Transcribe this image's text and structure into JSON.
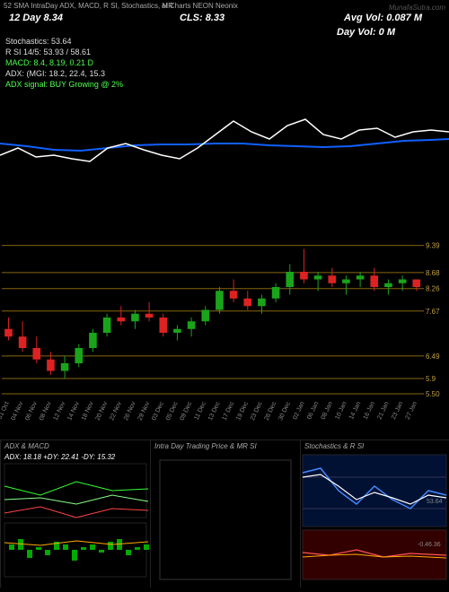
{
  "header": {
    "left": "52 SMA IntraDay ADX, MACD, R    SI, Stochastics, MR",
    "mid": "aI Charts NEON         Neonix",
    "brand": "MunafaSutra.com"
  },
  "titles": {
    "dayline": "12   Day    8.34",
    "cls": "CLS:   8.33",
    "avgvol": "Avg Vol: 0.087 M",
    "dayvol": "Day Vol: 0   M"
  },
  "indicators": {
    "lines": [
      {
        "text": "Stochastics: 53.64",
        "color": "#ddd"
      },
      {
        "text": "R    SI 14/5: 53.93 / 58.61",
        "color": "#ddd"
      },
      {
        "text": "MACD: 8.4,   8.19, 0.21 D",
        "color": "#4f4"
      },
      {
        "text": "ADX:                    (MGI: 18.2,  22.4,  15.3",
        "color": "#ddd"
      },
      {
        "text": "ADX   signal:                                 BUY Growing @ 2%",
        "color": "#4fff4f"
      }
    ]
  },
  "top_panel": {
    "line_blue": {
      "color": "#1060ff",
      "width": 2,
      "points": [
        [
          0,
          55
        ],
        [
          30,
          58
        ],
        [
          60,
          62
        ],
        [
          90,
          63
        ],
        [
          120,
          60
        ],
        [
          150,
          57
        ],
        [
          180,
          56
        ],
        [
          210,
          56
        ],
        [
          240,
          55
        ],
        [
          270,
          55
        ],
        [
          300,
          57
        ],
        [
          330,
          58
        ],
        [
          360,
          59
        ],
        [
          390,
          58
        ],
        [
          420,
          55
        ],
        [
          450,
          52
        ],
        [
          480,
          51
        ],
        [
          500,
          50
        ]
      ]
    },
    "line_white": {
      "color": "#ffffff",
      "width": 1.5,
      "points": [
        [
          0,
          68
        ],
        [
          20,
          60
        ],
        [
          40,
          70
        ],
        [
          60,
          68
        ],
        [
          80,
          72
        ],
        [
          100,
          75
        ],
        [
          120,
          60
        ],
        [
          140,
          55
        ],
        [
          160,
          62
        ],
        [
          180,
          68
        ],
        [
          200,
          72
        ],
        [
          220,
          60
        ],
        [
          240,
          45
        ],
        [
          260,
          30
        ],
        [
          280,
          42
        ],
        [
          300,
          50
        ],
        [
          320,
          35
        ],
        [
          340,
          28
        ],
        [
          360,
          45
        ],
        [
          380,
          50
        ],
        [
          400,
          40
        ],
        [
          420,
          38
        ],
        [
          440,
          48
        ],
        [
          460,
          42
        ],
        [
          480,
          40
        ],
        [
          500,
          42
        ]
      ]
    }
  },
  "candle_panel": {
    "ylim": [
      5.5,
      9.5
    ],
    "hlines": [
      9.39,
      8.68,
      8.26,
      7.67,
      6.49,
      5.9,
      5.5
    ],
    "hline_labels": [
      "9.39",
      "8.68",
      "8.26",
      "7.67",
      "6.49",
      "5.9",
      "5.50"
    ],
    "hline_min_label": "5.50",
    "green": "#1aa41a",
    "red": "#d22",
    "candles": [
      {
        "o": 7.2,
        "h": 7.5,
        "l": 6.9,
        "c": 7.0
      },
      {
        "o": 7.0,
        "h": 7.4,
        "l": 6.6,
        "c": 6.7
      },
      {
        "o": 6.7,
        "h": 7.0,
        "l": 6.3,
        "c": 6.4
      },
      {
        "o": 6.4,
        "h": 6.6,
        "l": 6.0,
        "c": 6.1
      },
      {
        "o": 6.1,
        "h": 6.5,
        "l": 5.9,
        "c": 6.3
      },
      {
        "o": 6.3,
        "h": 6.8,
        "l": 6.2,
        "c": 6.7
      },
      {
        "o": 6.7,
        "h": 7.2,
        "l": 6.6,
        "c": 7.1
      },
      {
        "o": 7.1,
        "h": 7.6,
        "l": 7.0,
        "c": 7.5
      },
      {
        "o": 7.5,
        "h": 7.8,
        "l": 7.3,
        "c": 7.4
      },
      {
        "o": 7.4,
        "h": 7.7,
        "l": 7.2,
        "c": 7.6
      },
      {
        "o": 7.6,
        "h": 7.9,
        "l": 7.4,
        "c": 7.5
      },
      {
        "o": 7.5,
        "h": 7.6,
        "l": 7.0,
        "c": 7.1
      },
      {
        "o": 7.1,
        "h": 7.3,
        "l": 6.9,
        "c": 7.2
      },
      {
        "o": 7.2,
        "h": 7.5,
        "l": 7.0,
        "c": 7.4
      },
      {
        "o": 7.4,
        "h": 7.8,
        "l": 7.3,
        "c": 7.7
      },
      {
        "o": 7.7,
        "h": 8.3,
        "l": 7.6,
        "c": 8.2
      },
      {
        "o": 8.2,
        "h": 8.5,
        "l": 7.9,
        "c": 8.0
      },
      {
        "o": 8.0,
        "h": 8.2,
        "l": 7.7,
        "c": 7.8
      },
      {
        "o": 7.8,
        "h": 8.1,
        "l": 7.6,
        "c": 8.0
      },
      {
        "o": 8.0,
        "h": 8.4,
        "l": 7.9,
        "c": 8.3
      },
      {
        "o": 8.3,
        "h": 8.9,
        "l": 8.1,
        "c": 8.7
      },
      {
        "o": 8.7,
        "h": 9.3,
        "l": 8.4,
        "c": 8.5
      },
      {
        "o": 8.5,
        "h": 8.7,
        "l": 8.2,
        "c": 8.6
      },
      {
        "o": 8.6,
        "h": 8.8,
        "l": 8.3,
        "c": 8.4
      },
      {
        "o": 8.4,
        "h": 8.6,
        "l": 8.1,
        "c": 8.5
      },
      {
        "o": 8.5,
        "h": 8.7,
        "l": 8.3,
        "c": 8.6
      },
      {
        "o": 8.6,
        "h": 8.8,
        "l": 8.2,
        "c": 8.3
      },
      {
        "o": 8.3,
        "h": 8.5,
        "l": 8.1,
        "c": 8.4
      },
      {
        "o": 8.4,
        "h": 8.6,
        "l": 8.2,
        "c": 8.5
      },
      {
        "o": 8.5,
        "h": 8.5,
        "l": 8.2,
        "c": 8.3
      }
    ],
    "dates": [
      "31 Oct",
      "04 Nov",
      "06 Nov",
      "08 Nov",
      "12 Nov",
      "14 Nov",
      "18 Nov",
      "20 Nov",
      "22 Nov",
      "26 Nov",
      "29 Nov",
      "03 Dec",
      "05 Dec",
      "09 Dec",
      "11 Dec",
      "13 Dec",
      "17 Dec",
      "19 Dec",
      "23 Dec",
      "26 Dec",
      "30 Dec",
      "02 Jan",
      "06 Jan",
      "08 Jan",
      "10 Jan",
      "14 Jan",
      "16 Jan",
      "21 Jan",
      "23 Jan",
      "27 Jan"
    ]
  },
  "bottom": {
    "adx": {
      "title": "ADX  & MACD",
      "line2": "ADX: 18.18  +DY: 22.41  -DY: 15.32",
      "adx_line": {
        "color": "#8f8",
        "pts": [
          [
            0,
            40
          ],
          [
            40,
            38
          ],
          [
            80,
            45
          ],
          [
            120,
            35
          ],
          [
            160,
            42
          ]
        ]
      },
      "pdy": {
        "color": "#3f3",
        "pts": [
          [
            0,
            25
          ],
          [
            40,
            35
          ],
          [
            80,
            20
          ],
          [
            120,
            30
          ],
          [
            160,
            28
          ]
        ]
      },
      "mdy": {
        "color": "#f44",
        "pts": [
          [
            0,
            55
          ],
          [
            40,
            48
          ],
          [
            80,
            60
          ],
          [
            120,
            50
          ],
          [
            160,
            52
          ]
        ]
      },
      "macd_bars": {
        "color": "#0a0",
        "pts": [
          [
            5,
            2
          ],
          [
            15,
            4
          ],
          [
            25,
            -3
          ],
          [
            35,
            1
          ],
          [
            45,
            -2
          ],
          [
            55,
            3
          ],
          [
            65,
            2
          ],
          [
            75,
            -4
          ],
          [
            85,
            1
          ],
          [
            95,
            2
          ],
          [
            105,
            -1
          ],
          [
            115,
            3
          ],
          [
            125,
            4
          ],
          [
            135,
            -2
          ],
          [
            145,
            1
          ],
          [
            155,
            2
          ]
        ]
      },
      "macd_line": {
        "color": "#fa0",
        "pts": [
          [
            0,
            8
          ],
          [
            40,
            5
          ],
          [
            80,
            10
          ],
          [
            120,
            6
          ],
          [
            160,
            9
          ]
        ]
      }
    },
    "intraday": {
      "title": "Intra   Day Trading Price   & MR     SI"
    },
    "stoch": {
      "title": "Stochastics & R       SI",
      "upper": {
        "bg": "#001133",
        "line1": {
          "color": "#48f",
          "pts": [
            [
              0,
              20
            ],
            [
              20,
              15
            ],
            [
              40,
              40
            ],
            [
              60,
              55
            ],
            [
              80,
              35
            ],
            [
              100,
              50
            ],
            [
              120,
              60
            ],
            [
              140,
              40
            ],
            [
              160,
              45
            ]
          ]
        },
        "line2": {
          "color": "#fff",
          "pts": [
            [
              0,
              25
            ],
            [
              20,
              22
            ],
            [
              40,
              35
            ],
            [
              60,
              50
            ],
            [
              80,
              42
            ],
            [
              100,
              48
            ],
            [
              120,
              55
            ],
            [
              140,
              45
            ],
            [
              160,
              48
            ]
          ]
        },
        "label": "53.64",
        "hlines": [
          25,
          60
        ]
      },
      "lower": {
        "bg": "#330000",
        "line": {
          "color": "#f55",
          "pts": [
            [
              0,
              15
            ],
            [
              30,
              18
            ],
            [
              60,
              12
            ],
            [
              90,
              20
            ],
            [
              120,
              16
            ],
            [
              160,
              18
            ]
          ]
        },
        "line2": {
          "color": "#fa0",
          "pts": [
            [
              0,
              18
            ],
            [
              30,
              16
            ],
            [
              60,
              15
            ],
            [
              90,
              18
            ],
            [
              120,
              17
            ],
            [
              160,
              19
            ]
          ]
        },
        "label": "-0.46.36"
      }
    }
  }
}
